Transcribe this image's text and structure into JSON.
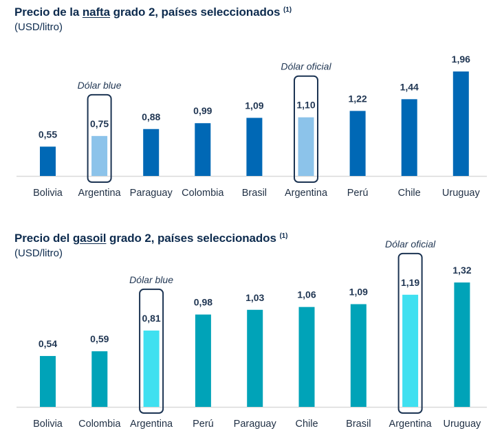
{
  "chart_data": [
    {
      "type": "bar",
      "title_parts": {
        "before": "Precio de la ",
        "underlined": "nafta",
        "after": " grado 2, países seleccionados ",
        "footnote": "(1)"
      },
      "title": "Precio de la nafta grado 2, países seleccionados (1)",
      "unit": "(USD/litro)",
      "categories": [
        "Bolivia",
        "Argentina",
        "Paraguay",
        "Colombia",
        "Brasil",
        "Argentina",
        "Perú",
        "Chile",
        "Uruguay"
      ],
      "values": [
        0.55,
        0.75,
        0.88,
        0.99,
        1.09,
        1.1,
        1.22,
        1.44,
        1.96
      ],
      "value_labels": [
        "0,55",
        "0,75",
        "0,88",
        "0,99",
        "1,09",
        "1,10",
        "1,22",
        "1,44",
        "1,96"
      ],
      "highlighted": [
        1,
        5
      ],
      "annotations": [
        {
          "index": 1,
          "text": "Dólar blue"
        },
        {
          "index": 5,
          "text": "Dólar oficial"
        }
      ],
      "colors": {
        "bar": "#0068b5",
        "highlight": "#8cc3ea",
        "box": "#1b3352",
        "axis": "#d9d9d9"
      },
      "ylim": [
        0,
        1.96
      ],
      "grid": false,
      "xlabel": "",
      "ylabel": ""
    },
    {
      "type": "bar",
      "title_parts": {
        "before": "Precio del ",
        "underlined": "gasoil",
        "after": " grado 2, países seleccionados ",
        "footnote": "(1)"
      },
      "title": "Precio del gasoil grado 2, países seleccionados (1)",
      "unit": "(USD/litro)",
      "categories": [
        "Bolivia",
        "Colombia",
        "Argentina",
        "Perú",
        "Paraguay",
        "Chile",
        "Brasil",
        "Argentina",
        "Uruguay"
      ],
      "values": [
        0.54,
        0.59,
        0.81,
        0.98,
        1.03,
        1.06,
        1.09,
        1.19,
        1.32
      ],
      "value_labels": [
        "0,54",
        "0,59",
        "0,81",
        "0,98",
        "1,03",
        "1,06",
        "1,09",
        "1,19",
        "1,32"
      ],
      "highlighted": [
        2,
        7
      ],
      "annotations": [
        {
          "index": 2,
          "text": "Dólar blue"
        },
        {
          "index": 7,
          "text": "Dólar oficial"
        }
      ],
      "colors": {
        "bar": "#00a3b8",
        "highlight": "#3fe0f0",
        "box": "#1b3352",
        "axis": "#d9d9d9"
      },
      "ylim": [
        0,
        1.32
      ],
      "grid": false,
      "xlabel": "",
      "ylabel": ""
    }
  ]
}
